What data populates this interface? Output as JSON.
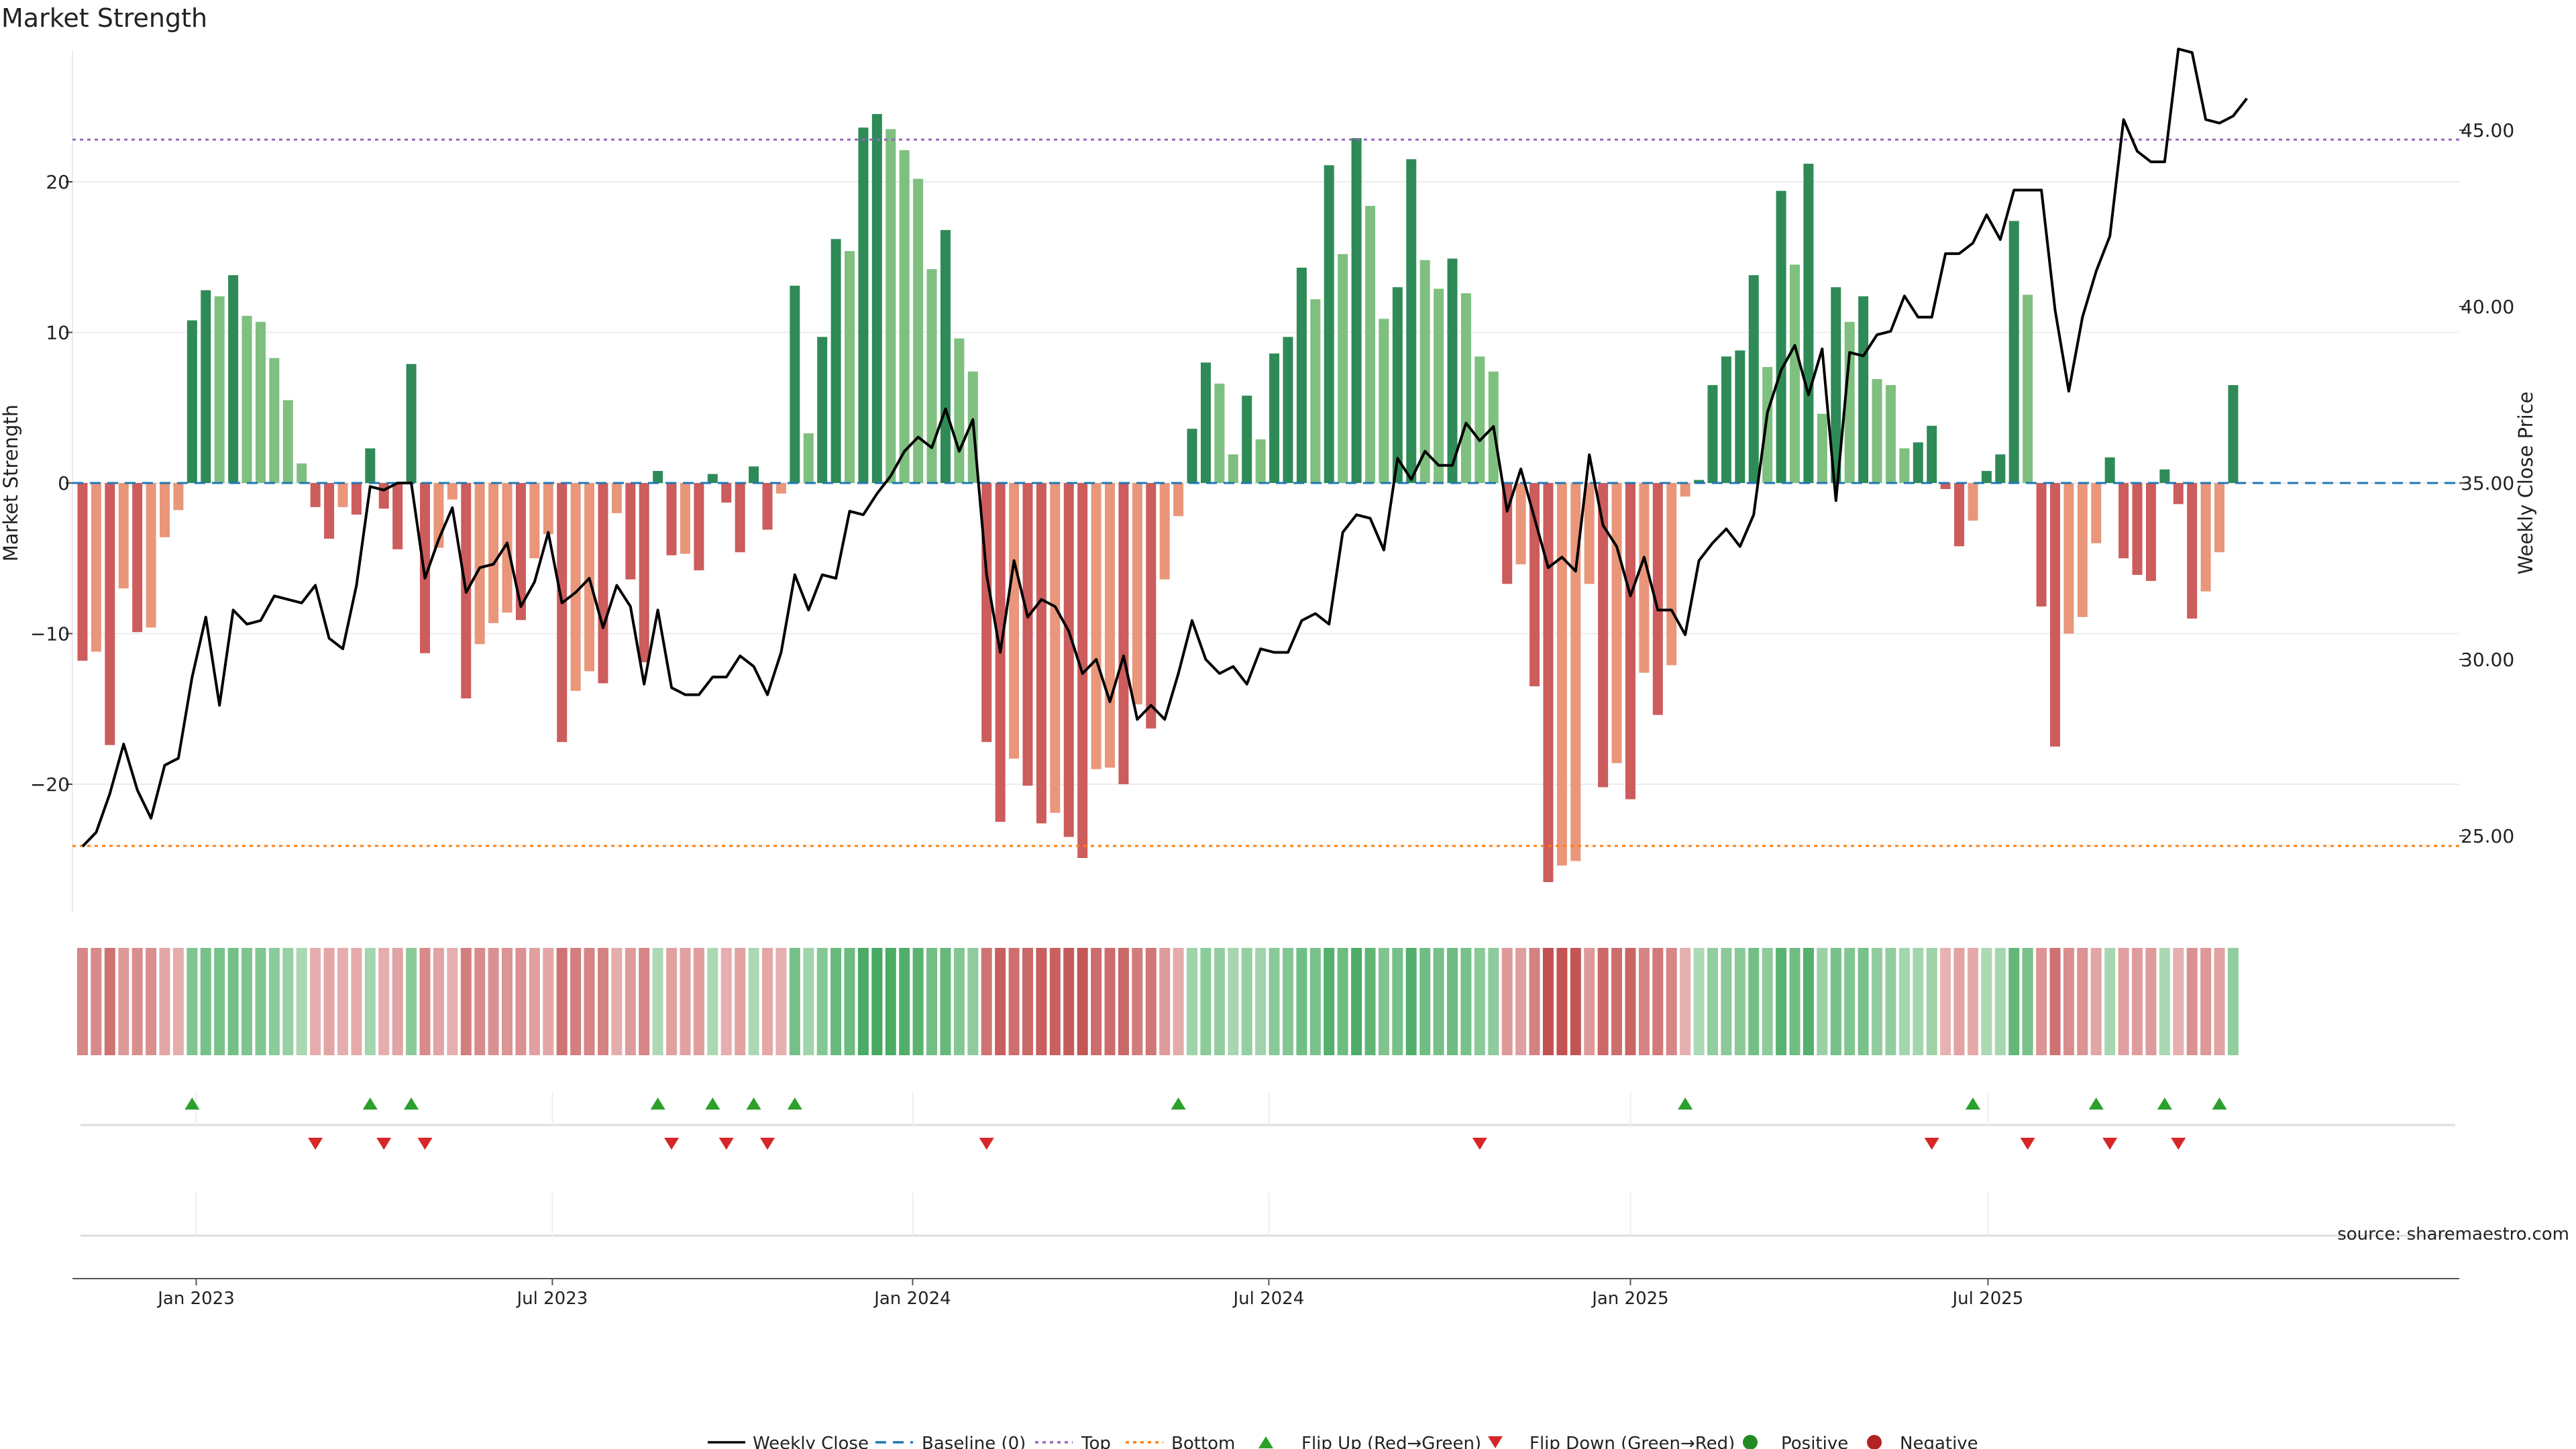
{
  "chart_data": {
    "type": "bar",
    "title": "Market Strength",
    "ylabel_left": "Market Strength",
    "ylabel_right": "Weekly Close Price",
    "ylim_left": [
      -28.5,
      28.5
    ],
    "ylim_right": [
      23.2,
      47.4
    ],
    "y_ticks_left": [
      20,
      10,
      0,
      -10,
      -20
    ],
    "y_ticks_left_labels": [
      "20",
      "10",
      "0",
      "−10",
      "−20"
    ],
    "y_ticks_right": [
      45,
      40,
      35,
      30,
      25
    ],
    "y_ticks_right_labels": [
      "45.00",
      "40.00",
      "35.00",
      "30.00",
      "25.00"
    ],
    "top_level": 22.8,
    "bottom_level": -24.1,
    "x_tick_indices": [
      8.3,
      34.3,
      60.6,
      86.6,
      113,
      139.1
    ],
    "x_tick_labels": [
      "Jan 2023",
      "Jul 2023",
      "Jan 2024",
      "Jul 2024",
      "Jan 2025",
      "Jul 2025"
    ],
    "strength": [
      -11.8,
      -11.2,
      -17.4,
      -7,
      -9.9,
      -9.6,
      -3.6,
      -1.8,
      10.8,
      12.8,
      12.4,
      13.8,
      11.1,
      10.7,
      8.3,
      5.5,
      1.3,
      -1.6,
      -3.7,
      -1.6,
      -2.1,
      2.3,
      -1.7,
      -4.4,
      7.9,
      -11.3,
      -4.3,
      -1.1,
      -14.3,
      -10.7,
      -9.3,
      -8.6,
      -9.1,
      -5,
      -3.4,
      -17.2,
      -13.8,
      -12.5,
      -13.3,
      -2,
      -6.4,
      -11.9,
      0.8,
      -4.8,
      -4.7,
      -5.8,
      0.6,
      -1.3,
      -4.6,
      1.1,
      -3.1,
      -0.7,
      13.1,
      3.3,
      9.7,
      16.2,
      15.4,
      23.6,
      24.5,
      23.5,
      22.1,
      20.2,
      14.2,
      16.8,
      9.6,
      7.4,
      -17.2,
      -22.5,
      -18.3,
      -20.1,
      -22.6,
      -21.9,
      -23.5,
      -24.9,
      -19,
      -18.9,
      -20,
      -14.7,
      -16.3,
      -6.4,
      -2.2,
      3.6,
      8,
      6.6,
      1.9,
      5.8,
      2.9,
      8.6,
      9.7,
      14.3,
      12.2,
      21.1,
      15.2,
      22.9,
      18.4,
      10.9,
      13,
      21.5,
      14.8,
      12.9,
      14.9,
      12.6,
      8.4,
      7.4,
      -6.7,
      -5.4,
      -13.5,
      -26.5,
      -25.4,
      -25.1,
      -6.7,
      -20.2,
      -18.6,
      -21,
      -12.6,
      -15.4,
      -12.1,
      -0.9,
      0.2,
      6.5,
      8.4,
      8.8,
      13.8,
      7.7,
      19.4,
      14.5,
      21.2,
      4.6,
      13,
      10.7,
      12.4,
      6.9,
      6.5,
      2.3,
      2.7,
      3.8,
      -0.4,
      -4.2,
      -2.5,
      0.8,
      1.9,
      17.4,
      12.5,
      -8.2,
      -17.5,
      -10,
      -8.9,
      -4,
      1.7,
      -5,
      -6.1,
      -6.5,
      0.9,
      -1.4,
      -9,
      -7.2,
      -4.6,
      6.5
    ],
    "weekly_close": [
      24.7,
      25.1,
      26.2,
      27.6,
      26.3,
      25.5,
      27,
      27.2,
      29.5,
      31.2,
      28.7,
      31.4,
      31,
      31.1,
      31.8,
      31.7,
      31.6,
      32.1,
      30.6,
      30.3,
      32.1,
      34.9,
      34.8,
      35,
      35,
      32.3,
      33.4,
      34.3,
      31.9,
      32.6,
      32.7,
      33.3,
      31.5,
      32.2,
      33.6,
      31.6,
      31.9,
      32.3,
      30.9,
      32.1,
      31.5,
      29.3,
      31.4,
      29.2,
      29,
      29,
      29.5,
      29.5,
      30.1,
      29.8,
      29,
      30.2,
      32.4,
      31.4,
      32.4,
      32.3,
      34.2,
      34.1,
      34.7,
      35.2,
      35.9,
      36.3,
      36,
      37.1,
      35.9,
      36.8,
      32.4,
      30.2,
      32.8,
      31.2,
      31.7,
      31.5,
      30.8,
      29.6,
      30,
      28.8,
      30.1,
      28.3,
      28.7,
      28.3,
      29.6,
      31.1,
      30,
      29.6,
      29.8,
      29.3,
      30.3,
      30.2,
      30.2,
      31.1,
      31.3,
      31,
      33.6,
      34.1,
      34,
      33.1,
      35.7,
      35.1,
      35.9,
      35.5,
      35.5,
      36.7,
      36.2,
      36.6,
      34.2,
      35.4,
      34,
      32.6,
      32.9,
      32.5,
      35.8,
      33.8,
      33.2,
      31.8,
      32.9,
      31.4,
      31.4,
      30.7,
      32.8,
      33.3,
      33.7,
      33.2,
      34.1,
      37,
      38.2,
      38.9,
      37.5,
      38.8,
      34.5,
      38.7,
      38.6,
      39.2,
      39.3,
      40.3,
      39.7,
      39.7,
      41.5,
      41.5,
      41.8,
      42.6,
      41.9,
      43.3,
      43.3,
      43.3,
      39.9,
      37.6,
      39.7,
      41,
      42,
      45.3,
      44.4,
      44.1,
      44.1,
      47.3,
      47.2,
      45.3,
      45.2,
      45.4,
      45.9
    ],
    "flip_up_indices": [
      8,
      21,
      24,
      42,
      46,
      49,
      52,
      80,
      117,
      138,
      147,
      152,
      156
    ],
    "flip_down_indices": [
      17,
      22,
      25,
      43,
      47,
      50,
      66,
      102,
      135,
      142,
      148,
      153
    ],
    "legend": [
      "Weekly Close",
      "Baseline (0)",
      "Top",
      "Bottom",
      "Flip Up (Red→Green)",
      "Flip Down (Green→Red)",
      "Positive",
      "Negative"
    ],
    "source": "source: sharemaestro.com"
  },
  "colors": {
    "pos_strong": "#2e8b57",
    "pos_light": "#7fbf7f",
    "neg_strong": "#cd5c5c",
    "neg_light": "#e9967a",
    "top_line": "#9467bd",
    "bottom_line": "#ff7f0e",
    "baseline": "#1f77b4",
    "flip_up": "#2ca02c",
    "flip_down": "#d62728",
    "positive_dot": "#228b22",
    "negative_dot": "#b22222",
    "price_line": "#000000"
  }
}
